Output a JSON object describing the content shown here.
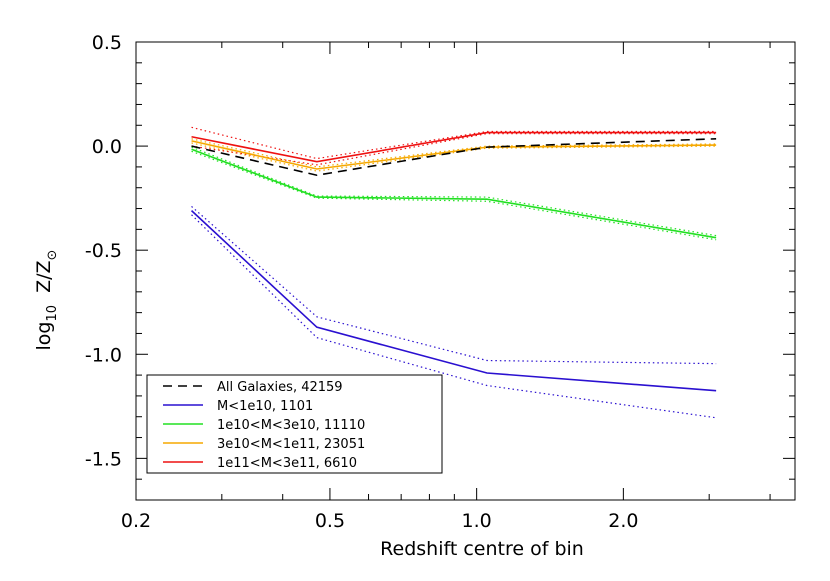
{
  "chart_data": {
    "type": "line",
    "xscale": "log",
    "xlabel": "Redshift centre of bin",
    "ylabel": {
      "prefix": "log",
      "sub": "10",
      "mid": "  Z/Z",
      "sunsym": "⊙"
    },
    "xlim": [
      0.2,
      4.5
    ],
    "ylim": [
      -1.7,
      0.5
    ],
    "xticks": [
      {
        "value": 0.2,
        "label": "0.2"
      },
      {
        "value": 0.5,
        "label": "0.5"
      },
      {
        "value": 1.0,
        "label": "1.0"
      },
      {
        "value": 2.0,
        "label": "2.0"
      }
    ],
    "yticks": [
      {
        "value": 0.5,
        "label": "0.5"
      },
      {
        "value": 0.0,
        "label": "0.0"
      },
      {
        "value": -0.5,
        "label": "-0.5"
      },
      {
        "value": -1.0,
        "label": "-1.0"
      },
      {
        "value": -1.5,
        "label": "-1.5"
      }
    ],
    "x": [
      0.26,
      0.47,
      1.05,
      3.1
    ],
    "series": [
      {
        "name": "All Galaxies, 42159",
        "color": "#000000",
        "style": "dashed",
        "values": [
          0.0,
          -0.14,
          -0.005,
          0.035
        ]
      },
      {
        "name": "M<1e10, 1101",
        "color": "#2a10d0",
        "style": "solid",
        "values": [
          -0.31,
          -0.87,
          -1.09,
          -1.175
        ],
        "upper": [
          -0.29,
          -0.82,
          -1.03,
          -1.045
        ],
        "lower": [
          -0.33,
          -0.92,
          -1.15,
          -1.305
        ]
      },
      {
        "name": "1e10<M<3e10, 11110",
        "color": "#22e022",
        "style": "solid",
        "values": [
          -0.015,
          -0.245,
          -0.255,
          -0.44
        ],
        "upper": [
          -0.005,
          -0.24,
          -0.245,
          -0.43
        ],
        "lower": [
          -0.025,
          -0.25,
          -0.265,
          -0.45
        ]
      },
      {
        "name": "3e10<M<1e11, 23051",
        "color": "#f5a800",
        "style": "solid",
        "values": [
          0.025,
          -0.11,
          -0.005,
          0.005
        ],
        "upper": [
          0.035,
          -0.1,
          0.0,
          0.01
        ],
        "lower": [
          0.015,
          -0.12,
          -0.01,
          0.0
        ]
      },
      {
        "name": "1e11<M<3e11, 6610",
        "color": "#ee1111",
        "style": "solid",
        "values": [
          0.045,
          -0.075,
          0.065,
          0.065
        ],
        "upper": [
          0.09,
          -0.06,
          0.07,
          0.07
        ],
        "lower": [
          0.0,
          -0.09,
          0.06,
          0.06
        ]
      }
    ]
  }
}
